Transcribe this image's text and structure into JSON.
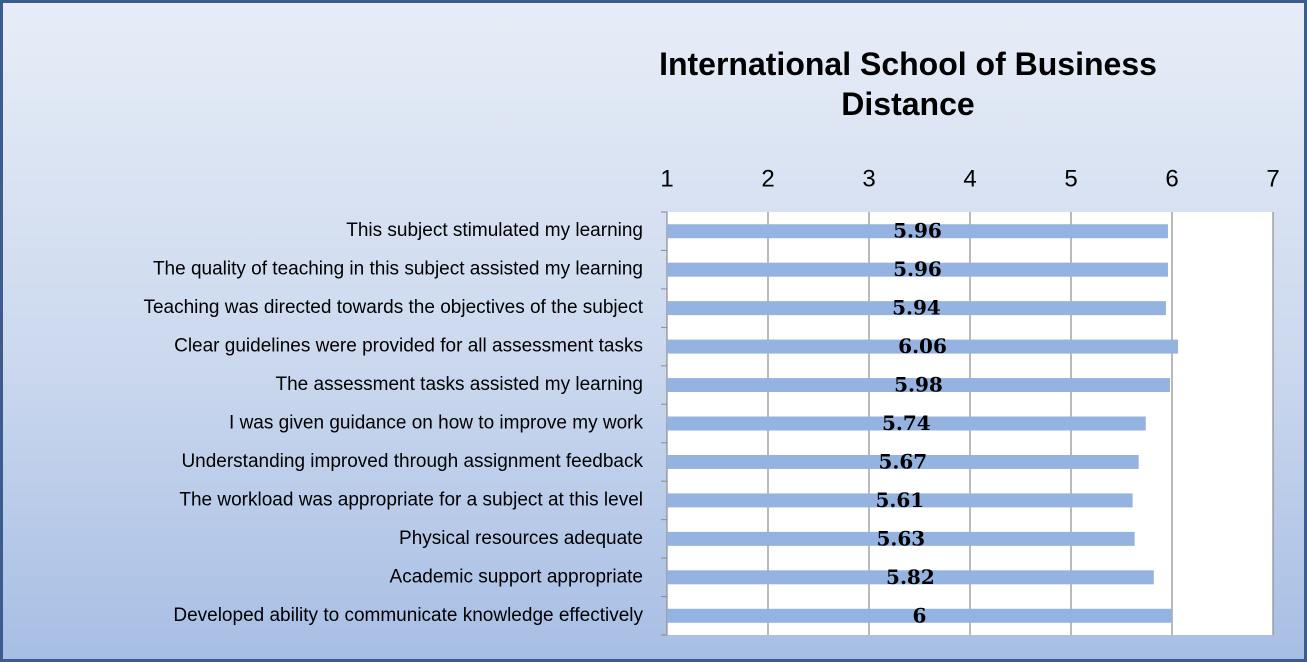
{
  "chart_data": {
    "type": "barh",
    "title": "International School of Business Distance",
    "categories": [
      "This subject stimulated my learning",
      "The quality of teaching in this subject assisted my learning",
      "Teaching was directed towards the objectives of the subject",
      "Clear guidelines were provided for all assessment tasks",
      "The assessment tasks assisted my learning",
      "I was given guidance on how to improve my work",
      "Understanding improved through assignment feedback",
      "The workload was appropriate for a subject at this level",
      "Physical resources adequate",
      "Academic support appropriate",
      "Developed ability to communicate knowledge effectively"
    ],
    "values": [
      5.96,
      5.96,
      5.94,
      6.06,
      5.98,
      5.74,
      5.67,
      5.61,
      5.63,
      5.82,
      6
    ],
    "color": "#95b3e0",
    "xlim": [
      1,
      7
    ],
    "xticks": [
      1,
      2,
      3,
      4,
      5,
      6,
      7
    ],
    "grid": true
  }
}
